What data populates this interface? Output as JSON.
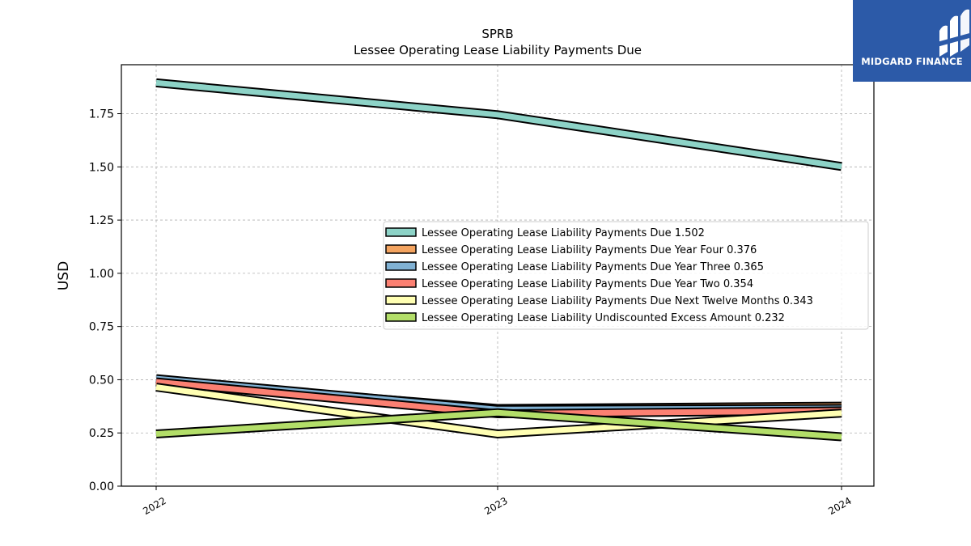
{
  "chart_data": {
    "type": "line",
    "title": "SPRB",
    "subtitle": "Lessee Operating Lease Liability Payments Due",
    "xlabel": "",
    "ylabel": "USD",
    "x": [
      "2022",
      "2023",
      "2024"
    ],
    "ylim": [
      0,
      1.98
    ],
    "yticks": [
      "0.00",
      "0.25",
      "0.50",
      "0.75",
      "1.00",
      "1.25",
      "1.50",
      "1.75"
    ],
    "grid": true,
    "legend_position": "center-right",
    "series": [
      {
        "name": "Lessee Operating Lease Liability Payments Due",
        "legend_label": "Lessee Operating Lease Liability Payments Due  1.502",
        "color": "#8dd3c7",
        "values": [
          1.895,
          1.745,
          1.502
        ]
      },
      {
        "name": "Lessee Operating Lease Liability Payments Due Year Four",
        "legend_label": "Lessee Operating Lease Liability Payments Due Year Four  0.376",
        "color": "#f4a460",
        "values": [
          0.495,
          0.365,
          0.376
        ]
      },
      {
        "name": "Lessee Operating Lease Liability Payments Due Year Three",
        "legend_label": "Lessee Operating Lease Liability Payments Due Year Three  0.365",
        "color": "#80b1d3",
        "values": [
          0.505,
          0.36,
          0.365
        ]
      },
      {
        "name": "Lessee Operating Lease Liability Payments Due Year Two",
        "legend_label": "Lessee Operating Lease Liability Payments Due Year Two  0.354",
        "color": "#fb8072",
        "values": [
          0.49,
          0.34,
          0.354
        ]
      },
      {
        "name": "Lessee Operating Lease Liability Payments Due Next Twelve Months",
        "legend_label": "Lessee Operating Lease Liability Payments Due Next Twelve Months  0.343",
        "color": "#ffffb3",
        "values": [
          0.465,
          0.245,
          0.343
        ]
      },
      {
        "name": "Lessee Operating Lease Liability Undiscounted Excess Amount",
        "legend_label": "Lessee Operating Lease Liability Undiscounted Excess Amount  0.232",
        "color": "#b3de69",
        "values": [
          0.245,
          0.345,
          0.232
        ]
      }
    ]
  },
  "logo": {
    "text": "MIDGARD FINANCE",
    "bg_color": "#2c5aa8"
  }
}
